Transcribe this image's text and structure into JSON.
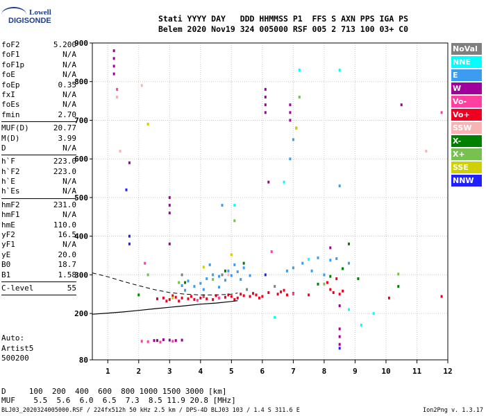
{
  "logo": {
    "line1": "Lowell",
    "line2": "DIGISONDE"
  },
  "header": {
    "line1": "Stati YYYY DAY   DDD HHMMSS P1  FFS S AXN PPS IGA PS",
    "line2": "Belem 2020 Nov19 324 005000 RSF 005 2 713 100 03+ C0"
  },
  "params": [
    {
      "name": "foF2",
      "value": "5.200"
    },
    {
      "name": "foF1",
      "value": "N/A"
    },
    {
      "name": "foF1p",
      "value": "N/A"
    },
    {
      "name": "foE",
      "value": "N/A"
    },
    {
      "name": "foEp",
      "value": "0.35"
    },
    {
      "name": "fxI",
      "value": "N/A"
    },
    {
      "name": "foEs",
      "value": "N/A"
    },
    {
      "name": "fmin",
      "value": "2.70"
    },
    {
      "name": "MUF(D)",
      "value": "20.77",
      "sep": true
    },
    {
      "name": "M(D)",
      "value": "3.99"
    },
    {
      "name": "D",
      "value": "N/A"
    },
    {
      "name": "h`F",
      "value": "223.0",
      "sep": true
    },
    {
      "name": "h`F2",
      "value": "223.0"
    },
    {
      "name": "h`E",
      "value": "N/A"
    },
    {
      "name": "h`Es",
      "value": "N/A"
    },
    {
      "name": "hmF2",
      "value": "231.0",
      "sep": true
    },
    {
      "name": "hmF1",
      "value": "N/A"
    },
    {
      "name": "hmE",
      "value": "110.0"
    },
    {
      "name": "yF2",
      "value": "16.5"
    },
    {
      "name": "yF1",
      "value": "N/A"
    },
    {
      "name": "yE",
      "value": "20.0"
    },
    {
      "name": "B0",
      "value": "18.7"
    },
    {
      "name": "B1",
      "value": "1.58"
    },
    {
      "name": "C-level",
      "value": "55",
      "sep": true
    }
  ],
  "auto": {
    "line1": "Auto:",
    "line2": "Artist5",
    "line3": "500200"
  },
  "legend": [
    {
      "label": "NoVal",
      "color": "#808080",
      "text_color": "#ffffff"
    },
    {
      "label": "NNE",
      "color": "#00ffff",
      "text_color": "#ffffff"
    },
    {
      "label": "E",
      "color": "#3c9cf0",
      "text_color": "#ffffff"
    },
    {
      "label": "W",
      "color": "#a0009c",
      "text_color": "#ffffff"
    },
    {
      "label": "Vo-",
      "color": "#ff40a0",
      "text_color": "#ffffff"
    },
    {
      "label": "Vo+",
      "color": "#f00020",
      "text_color": "#ffffff"
    },
    {
      "label": "SSW",
      "color": "#f8b4b4",
      "text_color": "#ffffff"
    },
    {
      "label": "X-",
      "color": "#008000",
      "text_color": "#ffffff"
    },
    {
      "label": "X+",
      "color": "#78c050",
      "text_color": "#ffffff"
    },
    {
      "label": "SSE",
      "color": "#d0d000",
      "text_color": "#ffffff"
    },
    {
      "label": "NNW",
      "color": "#2020ff",
      "text_color": "#ffffff"
    }
  ],
  "dist_table": {
    "line1": "D     100  200  400  600  800 1000 1500 3000 [km]",
    "line2": "MUF    5.5  5.6  6.0  6.5  7.3  8.5 11.9 20.8 [MHz]"
  },
  "footer": "BLJ03_2020324005000.RSF / 224fx512h 50 kHz 2.5 km / DPS-4D BLJ03 103 / 1.4 S 311.6 E",
  "version": "Ion2Png v. 1.3.17",
  "chart_data": {
    "type": "scatter",
    "title": "",
    "xlabel": "",
    "ylabel": "",
    "xlim": [
      0.5,
      12.0
    ],
    "ylim": [
      80,
      900
    ],
    "x_ticks": [
      1,
      2,
      3,
      4,
      5,
      6,
      7,
      8,
      9,
      10,
      11,
      12
    ],
    "y_ticks": [
      80,
      200,
      300,
      400,
      500,
      600,
      700,
      800,
      900
    ],
    "grid": true,
    "legend_position": "right",
    "profile_curve": {
      "name": "",
      "x": [
        0.5,
        1.0,
        1.5,
        2.0,
        2.5,
        3.0,
        3.5,
        4.0,
        4.5,
        5.0,
        5.2
      ],
      "y": [
        198,
        201,
        204,
        208,
        212,
        216,
        220,
        224,
        227,
        231,
        233
      ]
    },
    "trace_curve": {
      "name": "",
      "x": [
        0.5,
        1.0,
        1.5,
        2.0,
        2.5,
        3.0,
        3.5,
        4.0,
        4.5,
        5.0,
        5.2
      ],
      "y": [
        305,
        295,
        283,
        272,
        262,
        254,
        250,
        248,
        248,
        250,
        253
      ]
    },
    "series": [
      {
        "name": "Vo+",
        "color": "#f00020",
        "points": [
          [
            2.6,
            238
          ],
          [
            2.8,
            240
          ],
          [
            3.0,
            236
          ],
          [
            3.2,
            242
          ],
          [
            3.4,
            240
          ],
          [
            3.6,
            238
          ],
          [
            3.8,
            236
          ],
          [
            4.0,
            240
          ],
          [
            4.2,
            238
          ],
          [
            4.4,
            236
          ],
          [
            4.6,
            240
          ],
          [
            4.8,
            242
          ],
          [
            5.0,
            244
          ],
          [
            5.2,
            240
          ],
          [
            5.4,
            246
          ],
          [
            5.6,
            244
          ],
          [
            5.8,
            248
          ],
          [
            6.0,
            244
          ],
          [
            6.5,
            250
          ],
          [
            6.6,
            256
          ],
          [
            6.8,
            248
          ],
          [
            7.0,
            252
          ],
          [
            7.5,
            248
          ],
          [
            8.2,
            262
          ],
          [
            8.3,
            254
          ],
          [
            8.5,
            250
          ],
          [
            8.6,
            258
          ],
          [
            4.1,
            244
          ],
          [
            4.5,
            246
          ],
          [
            4.9,
            248
          ],
          [
            3.1,
            246
          ],
          [
            2.9,
            232
          ],
          [
            3.7,
            244
          ],
          [
            3.3,
            232
          ],
          [
            5.1,
            236
          ],
          [
            5.3,
            250
          ],
          [
            6.2,
            254
          ],
          [
            6.7,
            260
          ],
          [
            10.1,
            240
          ],
          [
            11.8,
            244
          ],
          [
            5.7,
            252
          ],
          [
            8.4,
            290
          ],
          [
            8.1,
            280
          ],
          [
            5.9,
            240
          ]
        ]
      },
      {
        "name": "E",
        "color": "#3c9cf0",
        "points": [
          [
            4.0,
            278
          ],
          [
            4.2,
            290
          ],
          [
            4.4,
            300
          ],
          [
            4.6,
            296
          ],
          [
            4.8,
            286
          ],
          [
            5.0,
            298
          ],
          [
            5.2,
            308
          ],
          [
            5.4,
            318
          ],
          [
            5.1,
            326
          ],
          [
            4.3,
            326
          ],
          [
            4.6,
            268
          ],
          [
            4.1,
            262
          ],
          [
            3.8,
            270
          ],
          [
            3.6,
            284
          ],
          [
            6.8,
            310
          ],
          [
            7.0,
            318
          ],
          [
            7.3,
            330
          ],
          [
            7.6,
            310
          ],
          [
            7.8,
            344
          ],
          [
            8.2,
            338
          ],
          [
            8.4,
            342
          ],
          [
            8.6,
            316
          ],
          [
            8.8,
            330
          ],
          [
            5.6,
            298
          ],
          [
            5.3,
            288
          ],
          [
            4.9,
            310
          ],
          [
            3.5,
            260
          ],
          [
            3.4,
            272
          ],
          [
            8.5,
            530
          ],
          [
            7.0,
            650
          ],
          [
            8.0,
            300
          ],
          [
            4.7,
            480
          ],
          [
            6.9,
            600
          ]
        ]
      },
      {
        "name": "W",
        "color": "#a0009c",
        "points": [
          [
            1.2,
            880
          ],
          [
            1.2,
            860
          ],
          [
            1.2,
            840
          ],
          [
            1.2,
            820
          ],
          [
            2.6,
            130
          ],
          [
            2.8,
            132
          ],
          [
            3.0,
            131
          ],
          [
            3.2,
            130
          ],
          [
            3.4,
            131
          ],
          [
            2.5,
            130
          ],
          [
            6.1,
            780
          ],
          [
            6.1,
            760
          ],
          [
            6.1,
            740
          ],
          [
            6.1,
            720
          ],
          [
            3.0,
            500
          ],
          [
            3.0,
            480
          ],
          [
            3.0,
            460
          ],
          [
            6.9,
            700
          ],
          [
            6.9,
            720
          ],
          [
            6.9,
            740
          ],
          [
            8.5,
            160
          ],
          [
            8.5,
            140
          ],
          [
            8.5,
            120
          ],
          [
            1.7,
            590
          ],
          [
            7.1,
            680
          ],
          [
            6.2,
            540
          ],
          [
            10.5,
            740
          ],
          [
            3.0,
            380
          ],
          [
            8.2,
            370
          ],
          [
            8.5,
            220
          ]
        ]
      },
      {
        "name": "Vo-",
        "color": "#ff40a0",
        "points": [
          [
            2.1,
            128
          ],
          [
            2.3,
            127
          ],
          [
            2.7,
            126
          ],
          [
            3.1,
            128
          ],
          [
            1.3,
            760
          ],
          [
            1.3,
            780
          ],
          [
            2.2,
            330
          ],
          [
            6.3,
            360
          ],
          [
            7.0,
            250
          ],
          [
            4.6,
            240
          ],
          [
            3.9,
            234
          ],
          [
            11.8,
            720
          ]
        ]
      },
      {
        "name": "X-",
        "color": "#008000",
        "points": [
          [
            8.8,
            380
          ],
          [
            8.6,
            316
          ],
          [
            8.2,
            296
          ],
          [
            9.1,
            290
          ],
          [
            10.4,
            270
          ],
          [
            3.5,
            280
          ],
          [
            4.8,
            310
          ],
          [
            5.4,
            330
          ],
          [
            7.8,
            276
          ],
          [
            2.0,
            248
          ]
        ]
      },
      {
        "name": "X+",
        "color": "#78c050",
        "points": [
          [
            7.2,
            760
          ],
          [
            7.1,
            680
          ],
          [
            5.1,
            440
          ],
          [
            2.3,
            300
          ],
          [
            3.3,
            280
          ],
          [
            4.4,
            288
          ],
          [
            10.4,
            302
          ],
          [
            8.0,
            276
          ]
        ]
      },
      {
        "name": "SSE",
        "color": "#d0d000",
        "points": [
          [
            2.3,
            690
          ],
          [
            3.1,
            240
          ],
          [
            4.1,
            320
          ],
          [
            5.0,
            352
          ],
          [
            7.1,
            680
          ]
        ]
      },
      {
        "name": "SSW",
        "color": "#f8b4b4",
        "points": [
          [
            1.4,
            620
          ],
          [
            11.3,
            620
          ],
          [
            1.3,
            760
          ],
          [
            2.1,
            790
          ],
          [
            4.9,
            300
          ]
        ]
      },
      {
        "name": "NNE",
        "color": "#00ffff",
        "points": [
          [
            7.2,
            830
          ],
          [
            8.5,
            830
          ],
          [
            5.1,
            480
          ],
          [
            6.7,
            540
          ],
          [
            8.8,
            210
          ],
          [
            9.6,
            200
          ],
          [
            9.2,
            170
          ],
          [
            6.4,
            190
          ],
          [
            7.5,
            340
          ]
        ]
      },
      {
        "name": "NNW",
        "color": "#2020ff",
        "points": [
          [
            1.7,
            400
          ],
          [
            1.7,
            380
          ],
          [
            6.1,
            300
          ],
          [
            8.5,
            110
          ],
          [
            1.6,
            520
          ]
        ]
      },
      {
        "name": "NoVal",
        "color": "#808080",
        "points": [
          [
            3.4,
            300
          ],
          [
            4.1,
            246
          ],
          [
            5.5,
            262
          ],
          [
            6.4,
            270
          ],
          [
            4.7,
            300
          ]
        ]
      }
    ]
  }
}
